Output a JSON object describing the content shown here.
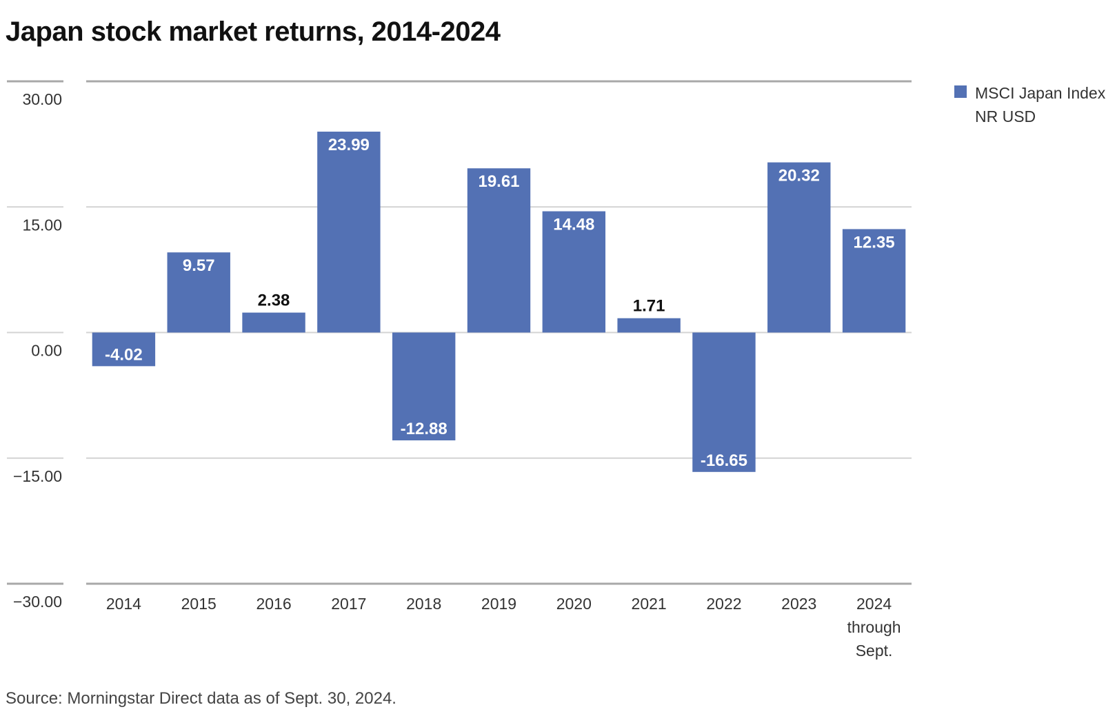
{
  "title": "Japan stock market returns, 2014-2024",
  "source": "Source: Morningstar Direct data as of Sept. 30, 2024.",
  "colors": {
    "bar": "#5371b4",
    "grid": "#d3d3d3",
    "axis": "#a8a8a8",
    "label_inside": "#ffffff",
    "label_outside": "#111111"
  },
  "chart_data": {
    "type": "bar",
    "categories": [
      "2014",
      "2015",
      "2016",
      "2017",
      "2018",
      "2019",
      "2020",
      "2021",
      "2022",
      "2023",
      "2024 through Sept."
    ],
    "series": [
      {
        "name": "MSCI Japan Index NR USD",
        "values": [
          -4.02,
          9.57,
          2.38,
          23.99,
          -12.88,
          19.61,
          14.48,
          1.71,
          -16.65,
          20.32,
          12.35
        ]
      }
    ],
    "value_labels": [
      "-4.02",
      "9.57",
      "2.38",
      "23.99",
      "-12.88",
      "19.61",
      "14.48",
      "1.71",
      "-16.65",
      "20.32",
      "12.35"
    ],
    "y_ticks": [
      30,
      15,
      0,
      -15,
      -30
    ],
    "y_tick_labels": [
      "30.00",
      "15.00",
      "0.00",
      "−15.00",
      "−30.00"
    ],
    "ylim": [
      -30,
      30
    ],
    "grid": true,
    "legend_position": "top-right",
    "xlabel": "",
    "ylabel": ""
  }
}
